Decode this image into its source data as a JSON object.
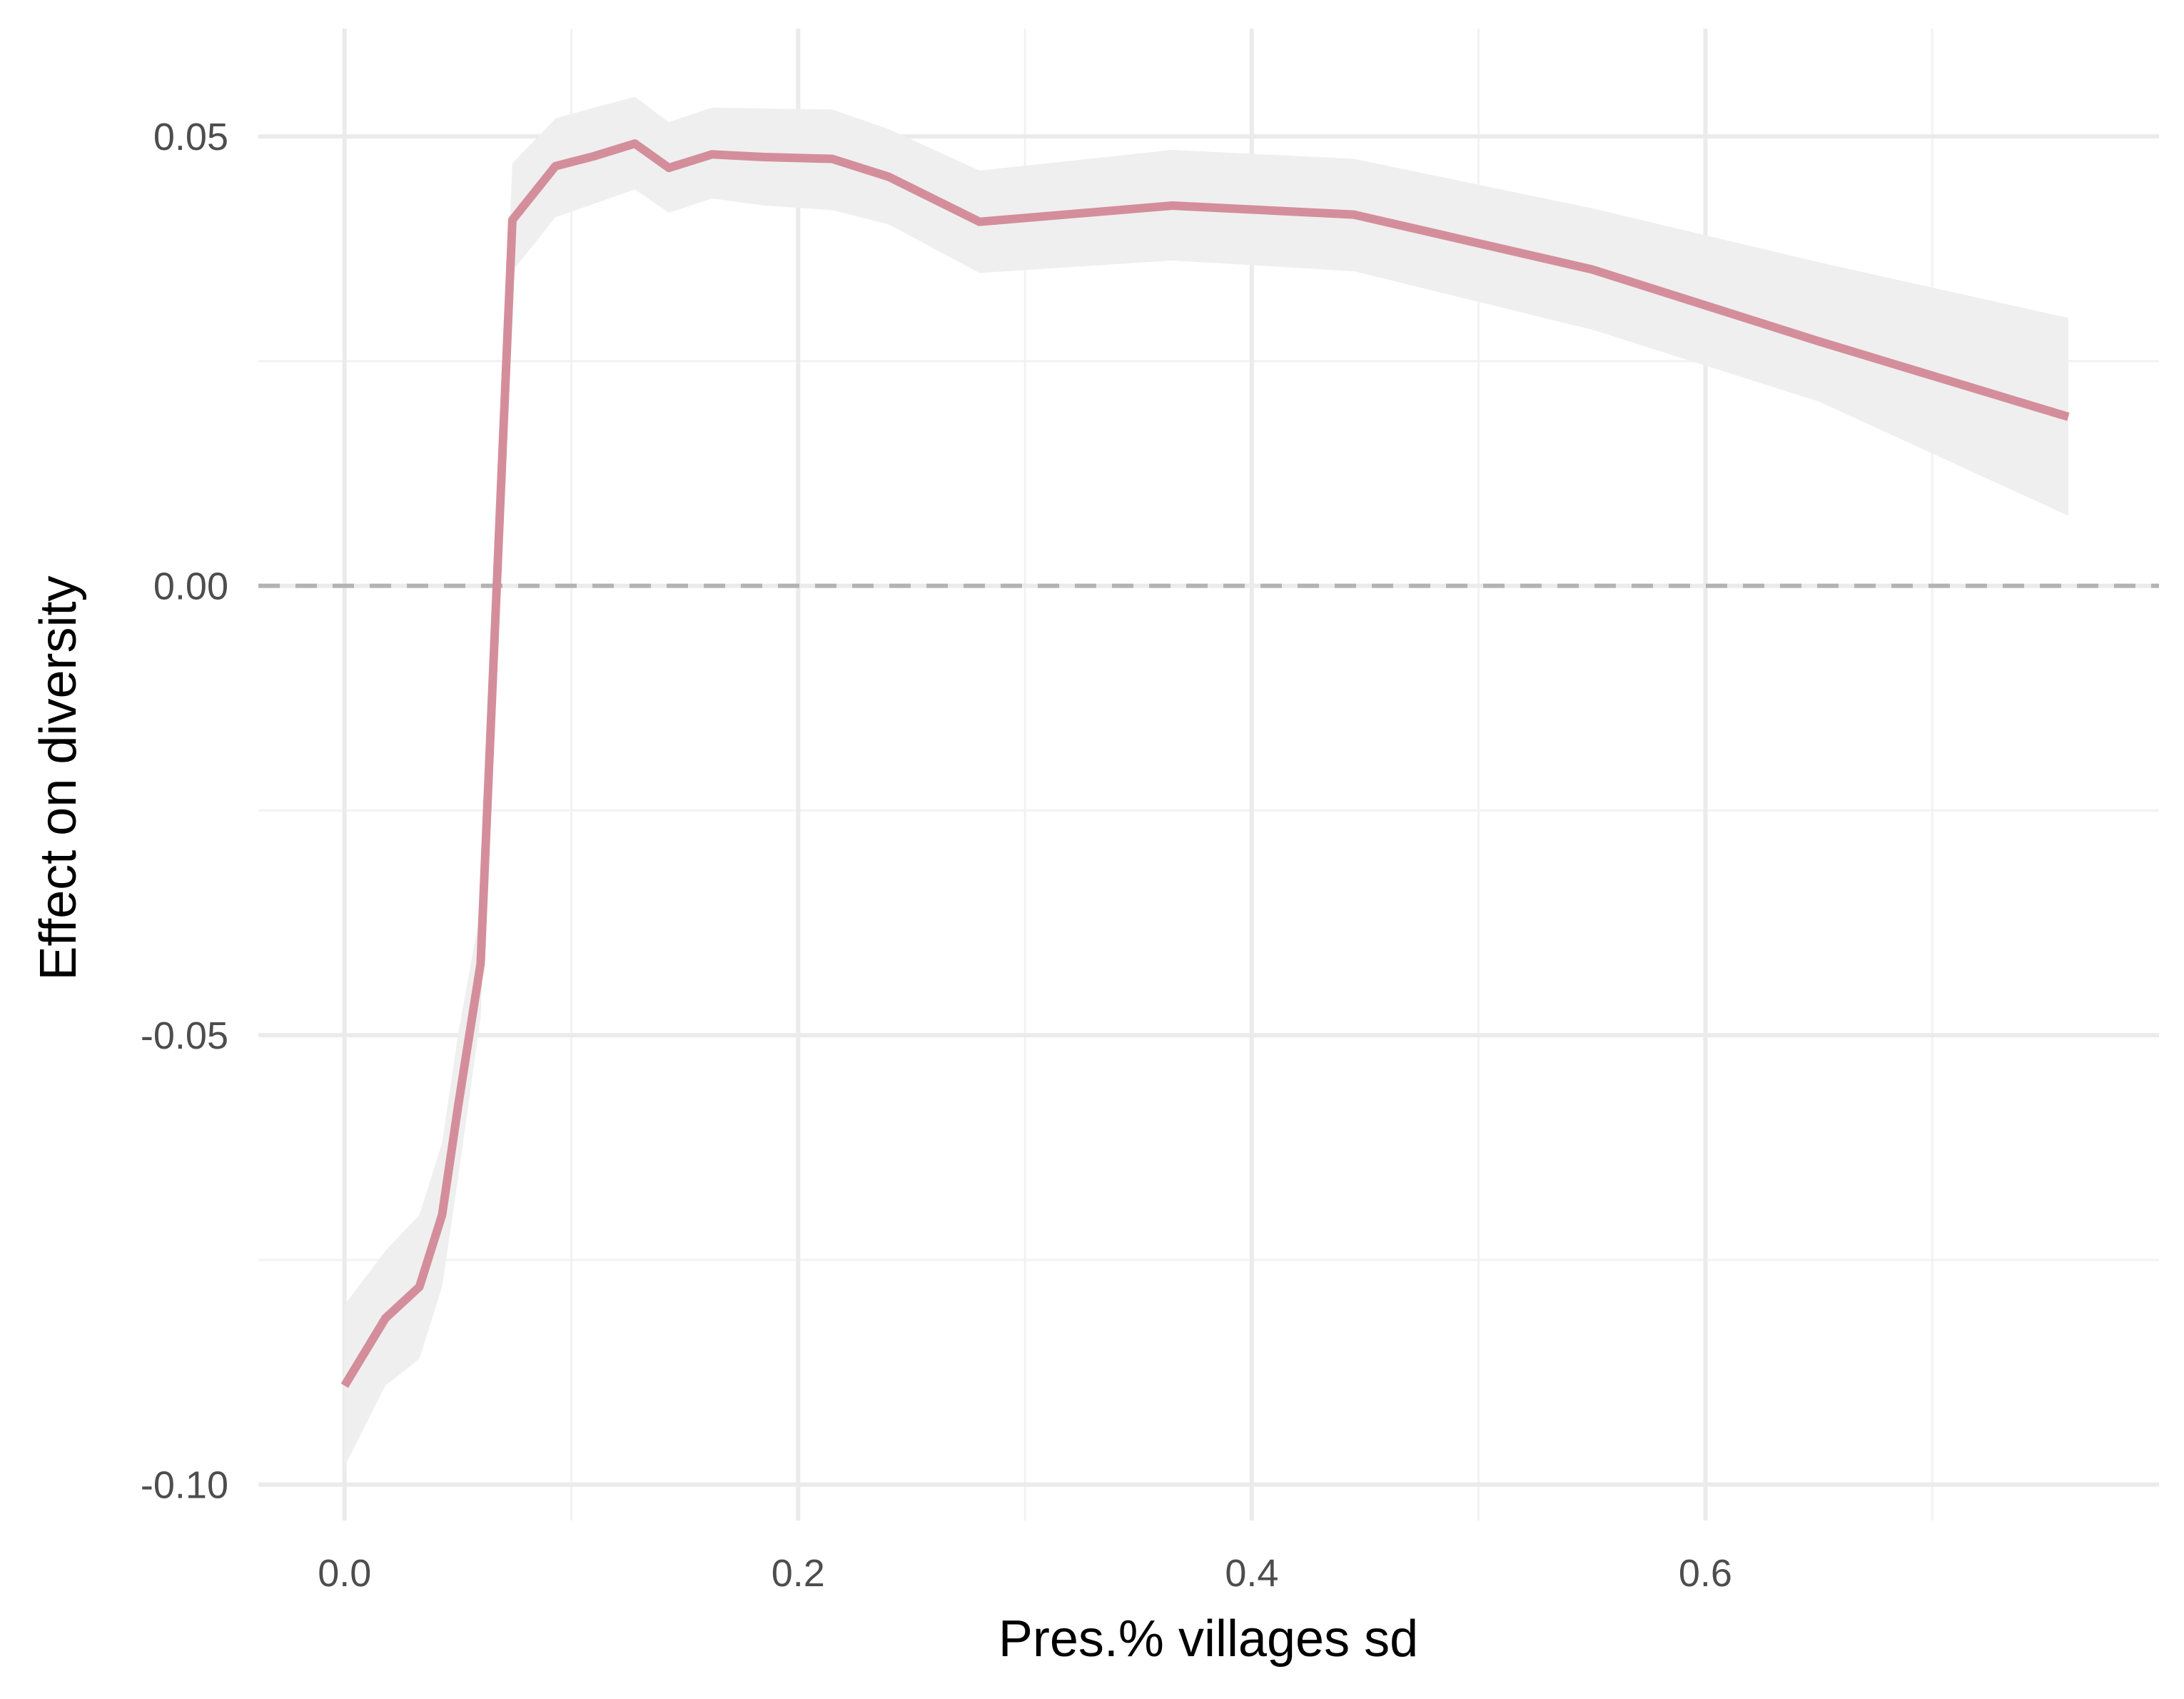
{
  "chart_data": {
    "type": "line",
    "title": "",
    "xlabel": "Pres.% villages sd",
    "ylabel": "Effect on diversity",
    "xlim": [
      -0.038,
      0.8
    ],
    "ylim": [
      -0.104,
      0.062
    ],
    "x_ticks": [
      0.0,
      0.2,
      0.4,
      0.6
    ],
    "x_tick_labels": [
      "0.0",
      "0.2",
      "0.4",
      "0.6"
    ],
    "x_minor_ticks": [
      0.1,
      0.3,
      0.5,
      0.7
    ],
    "y_ticks": [
      -0.1,
      -0.05,
      0.0,
      0.05
    ],
    "y_tick_labels": [
      "-0.10",
      "-0.05",
      "0.00",
      "0.05"
    ],
    "y_minor_ticks": [
      -0.075,
      -0.025,
      0.025
    ],
    "grid": true,
    "reference_line": {
      "y": 0.0,
      "style": "dashed",
      "color": "#b3b3b3"
    },
    "colors": {
      "line": "#d48e9b",
      "ribbon": "#efefef",
      "grid_major": "#ebebeb",
      "grid_minor": "#f2f2f2"
    },
    "series": [
      {
        "x": [
          0.0,
          0.018,
          0.033,
          0.043,
          0.05,
          0.06,
          0.074,
          0.093,
          0.11,
          0.128,
          0.143,
          0.162,
          0.185,
          0.215,
          0.24,
          0.28,
          0.365,
          0.445,
          0.55,
          0.65,
          0.76
        ],
        "y": [
          -0.089,
          -0.0815,
          -0.078,
          -0.07,
          -0.058,
          -0.042,
          0.0407,
          0.0467,
          0.0478,
          0.0492,
          0.0465,
          0.048,
          0.0477,
          0.0475,
          0.0455,
          0.0405,
          0.0423,
          0.0413,
          0.0352,
          0.0272,
          0.0188
        ],
        "lower": [
          -0.098,
          -0.089,
          -0.086,
          -0.078,
          -0.066,
          -0.048,
          0.035,
          0.041,
          0.0425,
          0.0441,
          0.0415,
          0.0431,
          0.0423,
          0.0418,
          0.0402,
          0.0348,
          0.0362,
          0.035,
          0.0285,
          0.0205,
          0.0078
        ],
        "upper": [
          -0.08,
          -0.074,
          -0.07,
          -0.062,
          -0.05,
          -0.036,
          0.047,
          0.052,
          0.0532,
          0.0544,
          0.0516,
          0.0532,
          0.0531,
          0.053,
          0.0508,
          0.0462,
          0.0485,
          0.0475,
          0.042,
          0.036,
          0.0298
        ]
      }
    ]
  }
}
